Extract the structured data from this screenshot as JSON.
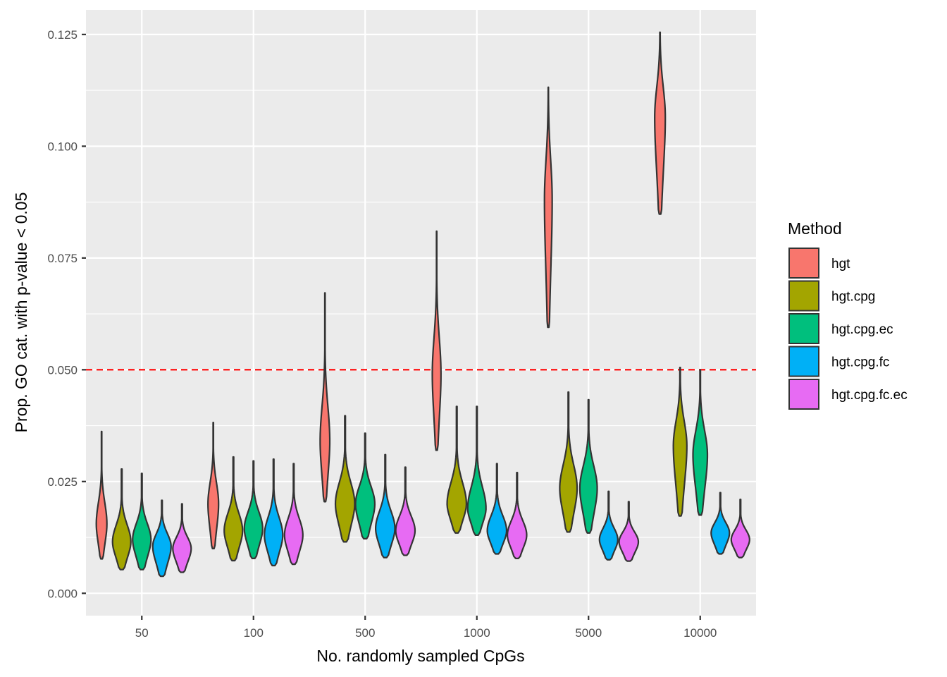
{
  "chart_data": {
    "type": "violin",
    "xlabel": "No. randomly sampled CpGs",
    "ylabel": "Prop. GO cat. with p-value < 0.05",
    "categories": [
      "50",
      "100",
      "500",
      "1000",
      "5000",
      "10000"
    ],
    "ylim": [
      -0.005,
      0.1305
    ],
    "yticks": [
      0.0,
      0.025,
      0.05,
      0.075,
      0.1,
      0.125
    ],
    "ytick_labels": [
      "0.000",
      "0.025",
      "0.050",
      "0.075",
      "0.100",
      "0.125"
    ],
    "grid": true,
    "reference_line": {
      "y": 0.05,
      "color": "#ff0000",
      "style": "dashed"
    },
    "legend": {
      "title": "Method",
      "position": "right"
    },
    "series": [
      {
        "name": "hgt",
        "color": "#F8766D",
        "values": [
          {
            "min": 0.0077,
            "max": 0.0362,
            "mode": 0.0155,
            "width": 0.55
          },
          {
            "min": 0.01,
            "max": 0.0382,
            "mode": 0.02,
            "width": 0.55
          },
          {
            "min": 0.0205,
            "max": 0.0672,
            "mode": 0.034,
            "width": 0.5
          },
          {
            "min": 0.032,
            "max": 0.081,
            "mode": 0.049,
            "width": 0.45
          },
          {
            "min": 0.0595,
            "max": 0.1132,
            "mode": 0.088,
            "width": 0.4
          },
          {
            "min": 0.0848,
            "max": 0.1255,
            "mode": 0.1065,
            "width": 0.55
          }
        ]
      },
      {
        "name": "hgt.cpg",
        "color": "#A3A500",
        "values": [
          {
            "min": 0.0053,
            "max": 0.0278,
            "mode": 0.0115,
            "width": 0.95
          },
          {
            "min": 0.0073,
            "max": 0.0305,
            "mode": 0.014,
            "width": 0.95
          },
          {
            "min": 0.0115,
            "max": 0.0397,
            "mode": 0.02,
            "width": 1.0
          },
          {
            "min": 0.0135,
            "max": 0.0418,
            "mode": 0.02,
            "width": 1.0
          },
          {
            "min": 0.0137,
            "max": 0.045,
            "mode": 0.0235,
            "width": 0.9
          },
          {
            "min": 0.0173,
            "max": 0.0505,
            "mode": 0.033,
            "width": 0.7
          }
        ]
      },
      {
        "name": "hgt.cpg.ec",
        "color": "#00BF7D",
        "values": [
          {
            "min": 0.0053,
            "max": 0.0268,
            "mode": 0.012,
            "width": 0.95
          },
          {
            "min": 0.0078,
            "max": 0.0296,
            "mode": 0.0145,
            "width": 0.95
          },
          {
            "min": 0.0122,
            "max": 0.0358,
            "mode": 0.02,
            "width": 1.0
          },
          {
            "min": 0.013,
            "max": 0.0418,
            "mode": 0.019,
            "width": 0.95
          },
          {
            "min": 0.0135,
            "max": 0.0433,
            "mode": 0.0235,
            "width": 0.9
          },
          {
            "min": 0.0175,
            "max": 0.05,
            "mode": 0.031,
            "width": 0.75
          }
        ]
      },
      {
        "name": "hgt.cpg.fc",
        "color": "#00B0F6",
        "values": [
          {
            "min": 0.0038,
            "max": 0.0208,
            "mode": 0.0105,
            "width": 0.95
          },
          {
            "min": 0.0062,
            "max": 0.03,
            "mode": 0.013,
            "width": 0.95
          },
          {
            "min": 0.008,
            "max": 0.031,
            "mode": 0.0145,
            "width": 1.0
          },
          {
            "min": 0.0088,
            "max": 0.029,
            "mode": 0.014,
            "width": 1.0
          },
          {
            "min": 0.0075,
            "max": 0.0228,
            "mode": 0.012,
            "width": 0.95
          },
          {
            "min": 0.0088,
            "max": 0.0225,
            "mode": 0.0135,
            "width": 0.95
          }
        ]
      },
      {
        "name": "hgt.cpg.fc.ec",
        "color": "#E76BF3",
        "values": [
          {
            "min": 0.0047,
            "max": 0.02,
            "mode": 0.01,
            "width": 0.95
          },
          {
            "min": 0.0065,
            "max": 0.029,
            "mode": 0.013,
            "width": 0.95
          },
          {
            "min": 0.0085,
            "max": 0.0282,
            "mode": 0.014,
            "width": 1.0
          },
          {
            "min": 0.0078,
            "max": 0.027,
            "mode": 0.013,
            "width": 1.0
          },
          {
            "min": 0.0072,
            "max": 0.0205,
            "mode": 0.0115,
            "width": 1.0
          },
          {
            "min": 0.008,
            "max": 0.021,
            "mode": 0.012,
            "width": 0.95
          }
        ]
      }
    ]
  }
}
